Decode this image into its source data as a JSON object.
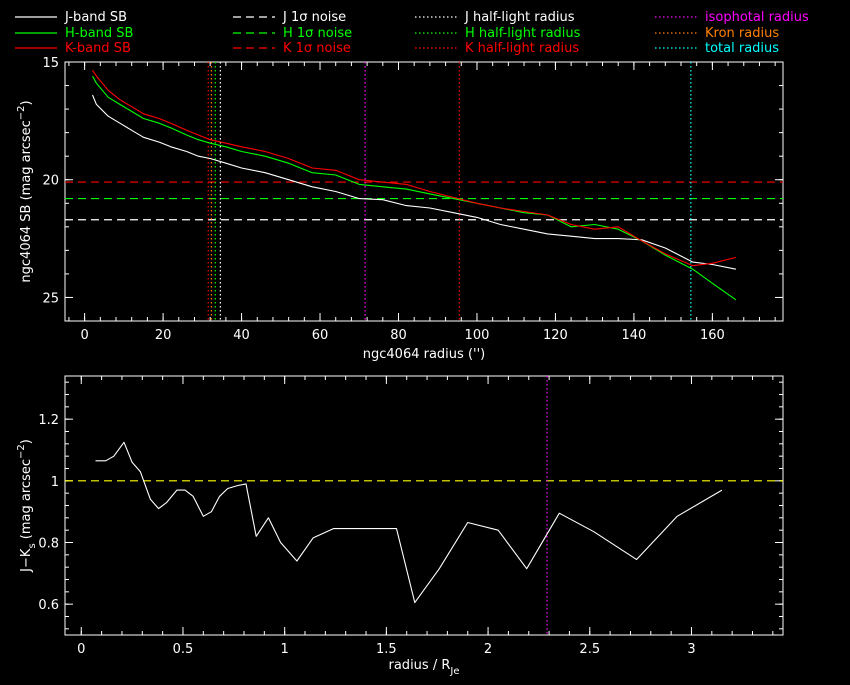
{
  "legend": {
    "items": [
      {
        "label": "J-band SB",
        "color": "#ffffff",
        "style": "solid"
      },
      {
        "label": "H-band SB",
        "color": "#00ff00",
        "style": "solid"
      },
      {
        "label": "K-band SB",
        "color": "#ff0000",
        "style": "solid"
      },
      {
        "label": "J 1σ noise",
        "color": "#ffffff",
        "style": "dashed"
      },
      {
        "label": "H 1σ noise",
        "color": "#00ff00",
        "style": "dashed"
      },
      {
        "label": "K 1σ noise",
        "color": "#ff0000",
        "style": "dashed"
      },
      {
        "label": "J half-light radius",
        "color": "#ffffff",
        "style": "dotted"
      },
      {
        "label": "H half-light radius",
        "color": "#00ff00",
        "style": "dotted"
      },
      {
        "label": "K half-light radius",
        "color": "#ff0000",
        "style": "dotted"
      },
      {
        "label": "isophotal radius",
        "color": "#ff00ff",
        "style": "dotted"
      },
      {
        "label": "Kron radius",
        "color": "#ff8000",
        "style": "dotted"
      },
      {
        "label": "total radius",
        "color": "#00ffff",
        "style": "dotted"
      }
    ]
  },
  "chart_data": [
    {
      "type": "line",
      "xlabel": "ngc4064 radius ('')",
      "ylabel": "ngc4064 SB (mag arcsec",
      "ylabel_sup": "−2",
      "ylabel_close": ")",
      "xlim": [
        -5,
        178
      ],
      "ylim": [
        26,
        15
      ],
      "y_inverted": true,
      "xticks": [
        0,
        20,
        40,
        60,
        80,
        100,
        120,
        140,
        160
      ],
      "yticks": [
        15,
        20,
        25
      ],
      "series": [
        {
          "name": "J-band SB",
          "color": "#ffffff",
          "x": [
            2,
            3,
            6,
            9,
            12,
            15,
            19,
            22,
            26,
            29,
            32,
            36,
            40,
            46,
            52,
            58,
            64,
            70,
            76,
            82,
            88,
            94,
            100,
            106,
            112,
            118,
            124,
            130,
            136,
            142,
            148,
            155,
            160,
            166
          ],
          "y": [
            16.4,
            16.8,
            17.3,
            17.6,
            17.9,
            18.2,
            18.4,
            18.6,
            18.8,
            19.0,
            19.1,
            19.3,
            19.5,
            19.7,
            20.0,
            20.3,
            20.5,
            20.8,
            20.85,
            21.1,
            21.2,
            21.4,
            21.6,
            21.9,
            22.1,
            22.3,
            22.4,
            22.5,
            22.5,
            22.55,
            22.9,
            23.5,
            23.6,
            23.8
          ]
        },
        {
          "name": "H-band SB",
          "color": "#00ff00",
          "x": [
            2,
            3,
            6,
            9,
            12,
            15,
            19,
            22,
            26,
            29,
            32,
            36,
            40,
            46,
            52,
            58,
            64,
            70,
            76,
            82,
            88,
            94,
            100,
            106,
            112,
            118,
            124,
            130,
            136,
            142,
            148,
            155,
            160,
            166
          ],
          "y": [
            15.6,
            15.9,
            16.5,
            16.8,
            17.1,
            17.4,
            17.6,
            17.8,
            18.1,
            18.3,
            18.45,
            18.6,
            18.8,
            19.0,
            19.3,
            19.7,
            19.8,
            20.2,
            20.3,
            20.4,
            20.6,
            20.8,
            21.0,
            21.2,
            21.4,
            21.5,
            22.0,
            21.9,
            22.1,
            22.6,
            23.2,
            23.8,
            24.4,
            25.1
          ]
        },
        {
          "name": "K-band SB",
          "color": "#ff0000",
          "x": [
            2,
            3,
            6,
            9,
            12,
            15,
            19,
            22,
            26,
            29,
            32,
            36,
            40,
            46,
            52,
            58,
            64,
            70,
            76,
            82,
            88,
            94,
            100,
            106,
            112,
            118,
            124,
            130,
            136,
            142,
            148,
            155,
            160,
            166
          ],
          "y": [
            15.35,
            15.6,
            16.2,
            16.6,
            16.9,
            17.2,
            17.4,
            17.6,
            17.9,
            18.1,
            18.3,
            18.45,
            18.6,
            18.8,
            19.1,
            19.5,
            19.6,
            20.0,
            20.1,
            20.2,
            20.5,
            20.75,
            21.0,
            21.2,
            21.35,
            21.5,
            21.9,
            22.1,
            22.0,
            22.6,
            23.15,
            23.65,
            23.55,
            23.3
          ]
        }
      ],
      "hlines": [
        {
          "label": "K 1σ noise",
          "y": 20.1,
          "color": "#ff0000",
          "style": "dashed"
        },
        {
          "label": "H 1σ noise",
          "y": 20.8,
          "color": "#00ff00",
          "style": "dashed"
        },
        {
          "label": "J 1σ noise",
          "y": 21.7,
          "color": "#ffffff",
          "style": "dashed"
        }
      ],
      "vlines": [
        {
          "label": "K half-light radius",
          "x": 31.5,
          "color": "#ff0000",
          "style": "dotted"
        },
        {
          "label": "Kron radius",
          "x": 32.3,
          "color": "#ff8000",
          "style": "dotted"
        },
        {
          "label": "H half-light radius",
          "x": 33.3,
          "color": "#00ff00",
          "style": "dotted"
        },
        {
          "label": "J half-light radius",
          "x": 34.6,
          "color": "#ffffff",
          "style": "dotted"
        },
        {
          "label": "isophotal radius",
          "x": 71.5,
          "color": "#ff00ff",
          "style": "dotted"
        },
        {
          "label": "K half-light radius (outer)",
          "x": 95.5,
          "color": "#ff0000",
          "style": "dotted"
        },
        {
          "label": "total radius",
          "x": 154.5,
          "color": "#00ffff",
          "style": "dotted"
        }
      ]
    },
    {
      "type": "line",
      "xlabel": "radius / R",
      "xlabel_sub": "Je",
      "ylabel": "J−K",
      "ylabel_sub": "s",
      "ylabel_rest": " (mag arcsec",
      "ylabel_sup": "−2",
      "ylabel_close": ")",
      "xlim": [
        -0.08,
        3.45
      ],
      "ylim": [
        0.5,
        1.34
      ],
      "xticks": [
        0,
        0.5,
        1,
        1.5,
        2,
        2.5,
        3
      ],
      "xtick_labels": [
        "0",
        "0.5",
        "1",
        "1.5",
        "2",
        "2.5",
        "3"
      ],
      "yticks": [
        0.6,
        0.8,
        1.0,
        1.2
      ],
      "ytick_labels": [
        "0.6",
        "0.8",
        "1",
        "1.2"
      ],
      "series": [
        {
          "name": "J-K",
          "color": "#ffffff",
          "x": [
            0.07,
            0.12,
            0.16,
            0.21,
            0.25,
            0.29,
            0.34,
            0.38,
            0.42,
            0.47,
            0.51,
            0.55,
            0.6,
            0.64,
            0.68,
            0.72,
            0.77,
            0.81,
            0.86,
            0.92,
            0.98,
            1.06,
            1.14,
            1.24,
            1.32,
            1.4,
            1.5,
            1.55,
            1.64,
            1.76,
            1.9,
            2.05,
            2.19,
            2.35,
            2.52,
            2.73,
            2.93,
            3.15
          ],
          "y": [
            1.065,
            1.065,
            1.08,
            1.125,
            1.06,
            1.03,
            0.94,
            0.91,
            0.93,
            0.97,
            0.97,
            0.95,
            0.885,
            0.9,
            0.95,
            0.975,
            0.985,
            0.99,
            0.82,
            0.88,
            0.8,
            0.74,
            0.815,
            0.845,
            0.845,
            0.845,
            0.845,
            0.845,
            0.605,
            0.715,
            0.865,
            0.84,
            0.715,
            0.895,
            0.835,
            0.745,
            0.885,
            0.97
          ]
        }
      ],
      "hlines": [
        {
          "label": "J-K = 1",
          "y": 1.0,
          "color": "#ffff00",
          "style": "dashed"
        }
      ],
      "vlines": [
        {
          "label": "isophotal radius",
          "x": 2.29,
          "color": "#ff00ff",
          "style": "dotted"
        }
      ]
    }
  ]
}
